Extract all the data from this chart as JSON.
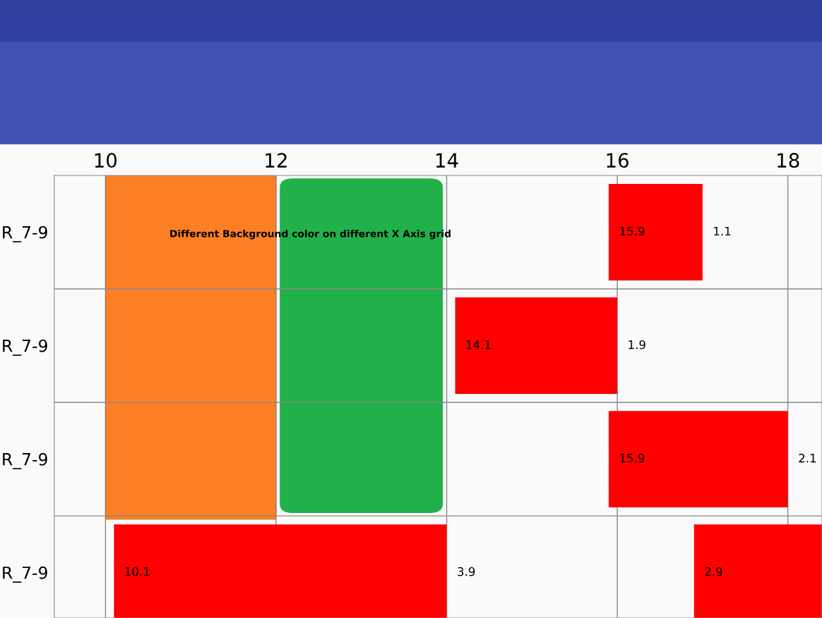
{
  "chart_data": {
    "type": "bar",
    "orientation": "horizontal",
    "categories": [
      "R_7-9",
      "R_7-9",
      "R_7-9",
      "R_7-9"
    ],
    "series": [
      {
        "color": "#ff0000",
        "base": [
          15.9,
          14.1,
          15.9,
          10.1
        ],
        "values": [
          1.1,
          1.9,
          2.1,
          3.9
        ],
        "value_labels": [
          "1.1",
          "1.9",
          "2.1",
          "3.9"
        ]
      },
      {
        "color": "#ff0000",
        "base": [
          null,
          null,
          null,
          16.9
        ],
        "values": [
          null,
          null,
          null,
          1.5
        ]
      }
    ],
    "xlim": [
      9.4,
      18.4
    ],
    "xticks": [
      10,
      12,
      14,
      16,
      18
    ],
    "grid": true,
    "bands": [
      {
        "axis": "x",
        "from": 10,
        "to": 12,
        "color": "#fd7f24"
      },
      {
        "axis": "x",
        "from": 12.05,
        "to": 13.95,
        "color": "#21b14b"
      }
    ],
    "annotations": [
      "Different Background color on different X Axis grid",
      "15.9",
      "14.1",
      "15.9",
      "10.1",
      "2.9"
    ]
  }
}
